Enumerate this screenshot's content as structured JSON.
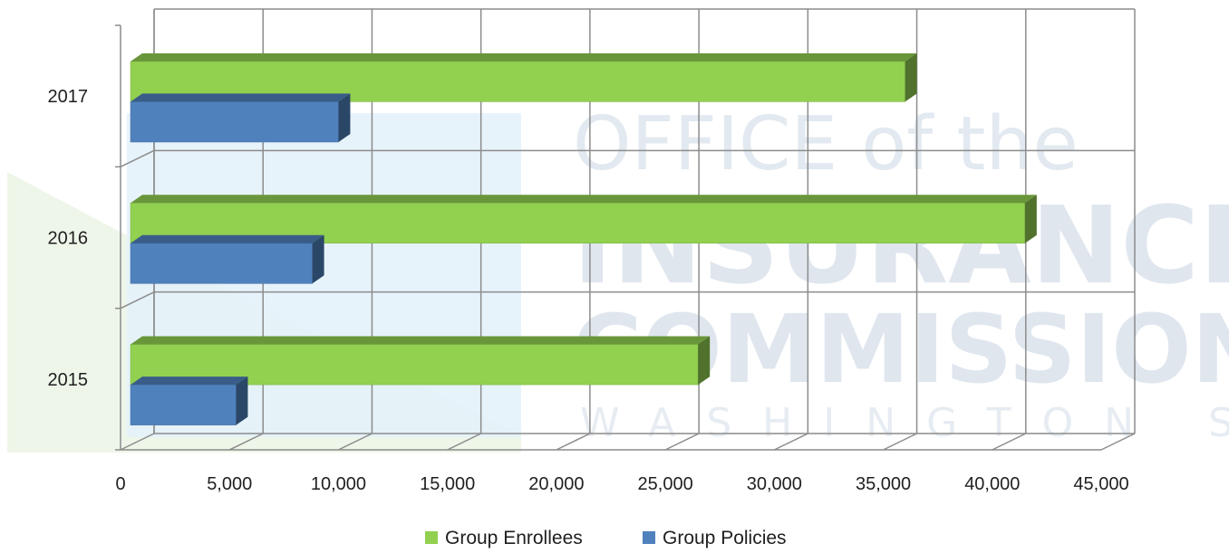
{
  "watermark": {
    "line1": "OFFICE of the",
    "line2": "INSURANCE",
    "line3": "COMMISSIONER",
    "line4": "WASHINGTON STATE"
  },
  "colors": {
    "group_enrollees": "#92d050",
    "group_policies": "#4f81bd",
    "grid": "#8c8c8c"
  },
  "chart_data": {
    "type": "bar",
    "orientation": "horizontal",
    "style": "3d-clustered",
    "categories": [
      "2015",
      "2016",
      "2017"
    ],
    "series": [
      {
        "name": "Group Enrollees",
        "values": [
          26500,
          41500,
          36000
        ]
      },
      {
        "name": "Group Policies",
        "values": [
          5300,
          8800,
          10000
        ]
      }
    ],
    "xlim": [
      0,
      45000
    ],
    "x_ticks": [
      "0",
      "5,000",
      "10,000",
      "15,000",
      "20,000",
      "25,000",
      "30,000",
      "35,000",
      "40,000",
      "45,000"
    ],
    "grid": true,
    "legend_position": "bottom",
    "title": "",
    "xlabel": "",
    "ylabel": ""
  }
}
